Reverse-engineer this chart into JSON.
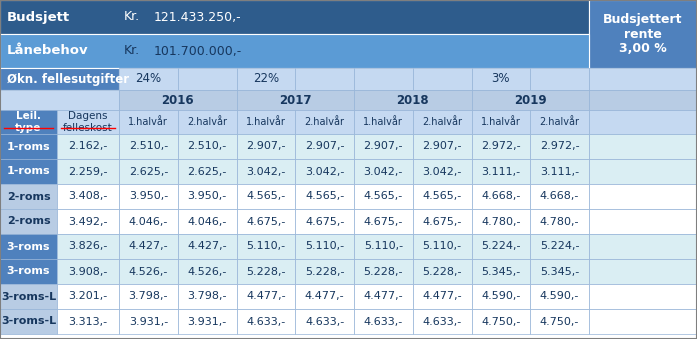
{
  "budsjett_label": "Budsjett",
  "budsjett_kr": "Kr.",
  "budsjett_value": "121.433.250,-",
  "budsjettert_rente": "Budsjettert\nrente\n3,00 %",
  "laanebehov_label": "Lånebehov",
  "laanebehov_kr": "Kr.",
  "laanebehov_value": "101.700.000,-",
  "oekn_label": "Økn. fellesutgifter",
  "header_years": [
    "2016",
    "2017",
    "2018",
    "2019"
  ],
  "subheaders": [
    "1.halvår",
    "2.halvår",
    "1.halvår",
    "2.halvår",
    "1.halvår",
    "2.halvår",
    "1.halvår",
    "2.halvår"
  ],
  "rows": [
    [
      "1-roms",
      "2.162,-",
      "2.510,-",
      "2.510,-",
      "2.907,-",
      "2.907,-",
      "2.907,-",
      "2.907,-",
      "2.972,-",
      "2.972,-"
    ],
    [
      "1-roms",
      "2.259,-",
      "2.625,-",
      "2.625,-",
      "3.042,-",
      "3.042,-",
      "3.042,-",
      "3.042,-",
      "3.111,-",
      "3.111,-"
    ],
    [
      "2-roms",
      "3.408,-",
      "3.950,-",
      "3.950,-",
      "4.565,-",
      "4.565,-",
      "4.565,-",
      "4.565,-",
      "4.668,-",
      "4.668,-"
    ],
    [
      "2-roms",
      "3.492,-",
      "4.046,-",
      "4.046,-",
      "4.675,-",
      "4.675,-",
      "4.675,-",
      "4.675,-",
      "4.780,-",
      "4.780,-"
    ],
    [
      "3-roms",
      "3.826,-",
      "4.427,-",
      "4.427,-",
      "5.110,-",
      "5.110,-",
      "5.110,-",
      "5.110,-",
      "5.224,-",
      "5.224,-"
    ],
    [
      "3-roms",
      "3.908,-",
      "4.526,-",
      "4.526,-",
      "5.228,-",
      "5.228,-",
      "5.228,-",
      "5.228,-",
      "5.345,-",
      "5.345,-"
    ],
    [
      "3-roms-L",
      "3.201,-",
      "3.798,-",
      "3.798,-",
      "4.477,-",
      "4.477,-",
      "4.477,-",
      "4.477,-",
      "4.590,-",
      "4.590,-"
    ],
    [
      "3-roms-L",
      "3.313,-",
      "3.931,-",
      "3.931,-",
      "4.633,-",
      "4.633,-",
      "4.633,-",
      "4.633,-",
      "4.750,-",
      "4.750,-"
    ]
  ],
  "color_header_dark": "#2E5C8C",
  "color_header_medium": "#5B9BD5",
  "color_header_light_bg": "#C5D9F1",
  "color_row_light": "#DAEEF3",
  "color_row_alt": "#B8CCE4",
  "color_row_white": "#FFFFFF",
  "color_header_text": "#FFFFFF",
  "color_dark_text": "#17375E",
  "color_border": "#95B3D7",
  "color_year_bg": "#B8CCE4",
  "color_subheader_bg": "#C5D9F1",
  "color_oekn_bg": "#4F81BD",
  "color_leil_bg": "#4F81BD",
  "color_right_panel": "#4F81BD",
  "oekn_text_cols": {
    "1": "24%",
    "3": "22%",
    "7": "3%"
  }
}
